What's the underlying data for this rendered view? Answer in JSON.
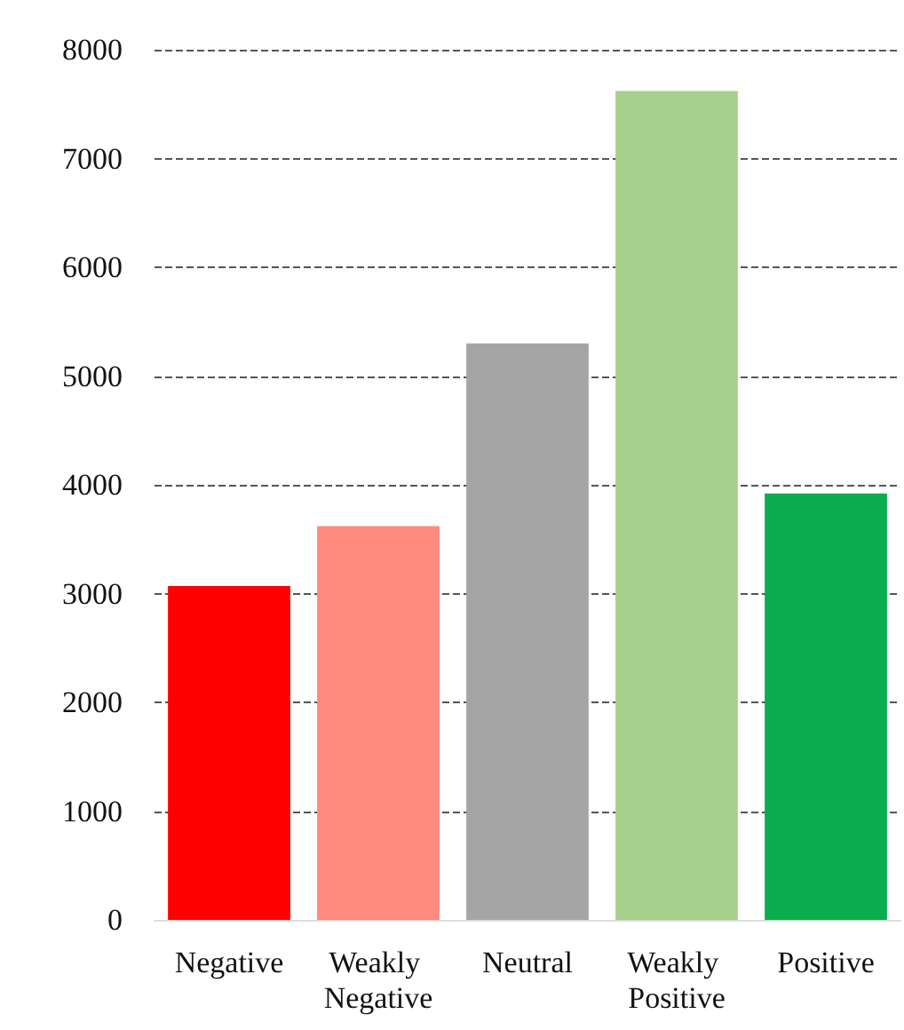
{
  "chart_data": {
    "type": "bar",
    "categories": [
      "Negative",
      "Weakly Negative",
      "Neutral",
      "Weakly Positive",
      "Positive"
    ],
    "values": [
      3070,
      3620,
      5300,
      7620,
      3920
    ],
    "colors": [
      "#ff0000",
      "#ff8a7e",
      "#a5a5a5",
      "#a8d08d",
      "#0aad4f"
    ],
    "ylim": [
      0,
      8000
    ],
    "yticks": [
      0,
      1000,
      2000,
      3000,
      4000,
      5000,
      6000,
      7000,
      8000
    ],
    "grid": "y"
  }
}
